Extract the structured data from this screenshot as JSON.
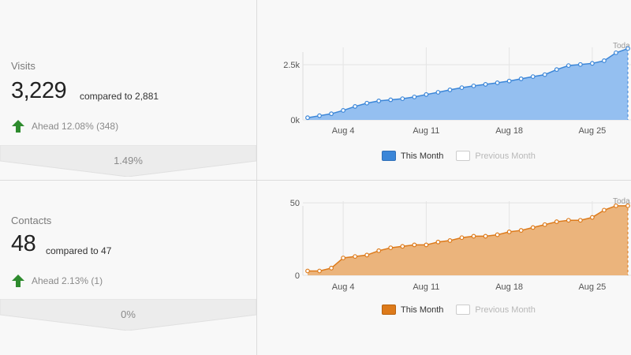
{
  "visits": {
    "label": "Visits",
    "value": "3,229",
    "compared": "compared to 2,881",
    "ahead": "Ahead 12.08% (348)",
    "percent_change": "1.49%"
  },
  "contacts": {
    "label": "Contacts",
    "value": "48",
    "compared": "compared to 47",
    "ahead": "Ahead 2.13% (1)",
    "percent_change": "0%"
  },
  "legend": {
    "this_month": "This Month",
    "previous_month": "Previous Month"
  },
  "colors": {
    "visits_line": "#3b86d8",
    "visits_fill": "#94bff0",
    "contacts_line": "#dd7a1a",
    "contacts_fill": "#ebb47c",
    "ahead_arrow": "#2e8b2e"
  },
  "icons": {
    "ahead": "up-arrow-icon"
  },
  "chart_data": [
    {
      "type": "area",
      "today_label": "Toda",
      "x_ticks": [
        "Aug 4",
        "Aug 11",
        "Aug 18",
        "Aug 25"
      ],
      "x_tick_days": [
        4,
        11,
        18,
        25
      ],
      "y_tick_labels": [
        "0k",
        "2.5k"
      ],
      "y_ticks": [
        0,
        2500
      ],
      "ylim": [
        0,
        3500
      ],
      "xlim": [
        1,
        28
      ],
      "days": [
        1,
        2,
        3,
        4,
        5,
        6,
        7,
        8,
        9,
        10,
        11,
        12,
        13,
        14,
        15,
        16,
        17,
        18,
        19,
        20,
        21,
        22,
        23,
        24,
        25,
        26,
        27,
        28
      ],
      "series": [
        {
          "name": "This Month",
          "values": [
            100,
            190,
            280,
            430,
            610,
            760,
            860,
            910,
            960,
            1040,
            1150,
            1250,
            1360,
            1460,
            1540,
            1610,
            1680,
            1760,
            1860,
            1960,
            2050,
            2280,
            2460,
            2510,
            2560,
            2680,
            3040,
            3229
          ]
        }
      ]
    },
    {
      "type": "area",
      "today_label": "Toda",
      "x_ticks": [
        "Aug 4",
        "Aug 11",
        "Aug 18",
        "Aug 25"
      ],
      "x_tick_days": [
        4,
        11,
        18,
        25
      ],
      "y_tick_labels": [
        "0",
        "50"
      ],
      "y_ticks": [
        0,
        50
      ],
      "ylim": [
        0,
        55
      ],
      "xlim": [
        1,
        28
      ],
      "days": [
        1,
        2,
        3,
        4,
        5,
        6,
        7,
        8,
        9,
        10,
        11,
        12,
        13,
        14,
        15,
        16,
        17,
        18,
        19,
        20,
        21,
        22,
        23,
        24,
        25,
        26,
        27,
        28
      ],
      "series": [
        {
          "name": "This Month",
          "values": [
            3,
            3,
            5,
            12,
            13,
            14,
            17,
            19,
            20,
            21,
            21,
            23,
            24,
            26,
            27,
            27,
            28,
            30,
            31,
            33,
            35,
            37,
            38,
            38,
            40,
            45,
            48,
            48
          ]
        }
      ]
    }
  ]
}
